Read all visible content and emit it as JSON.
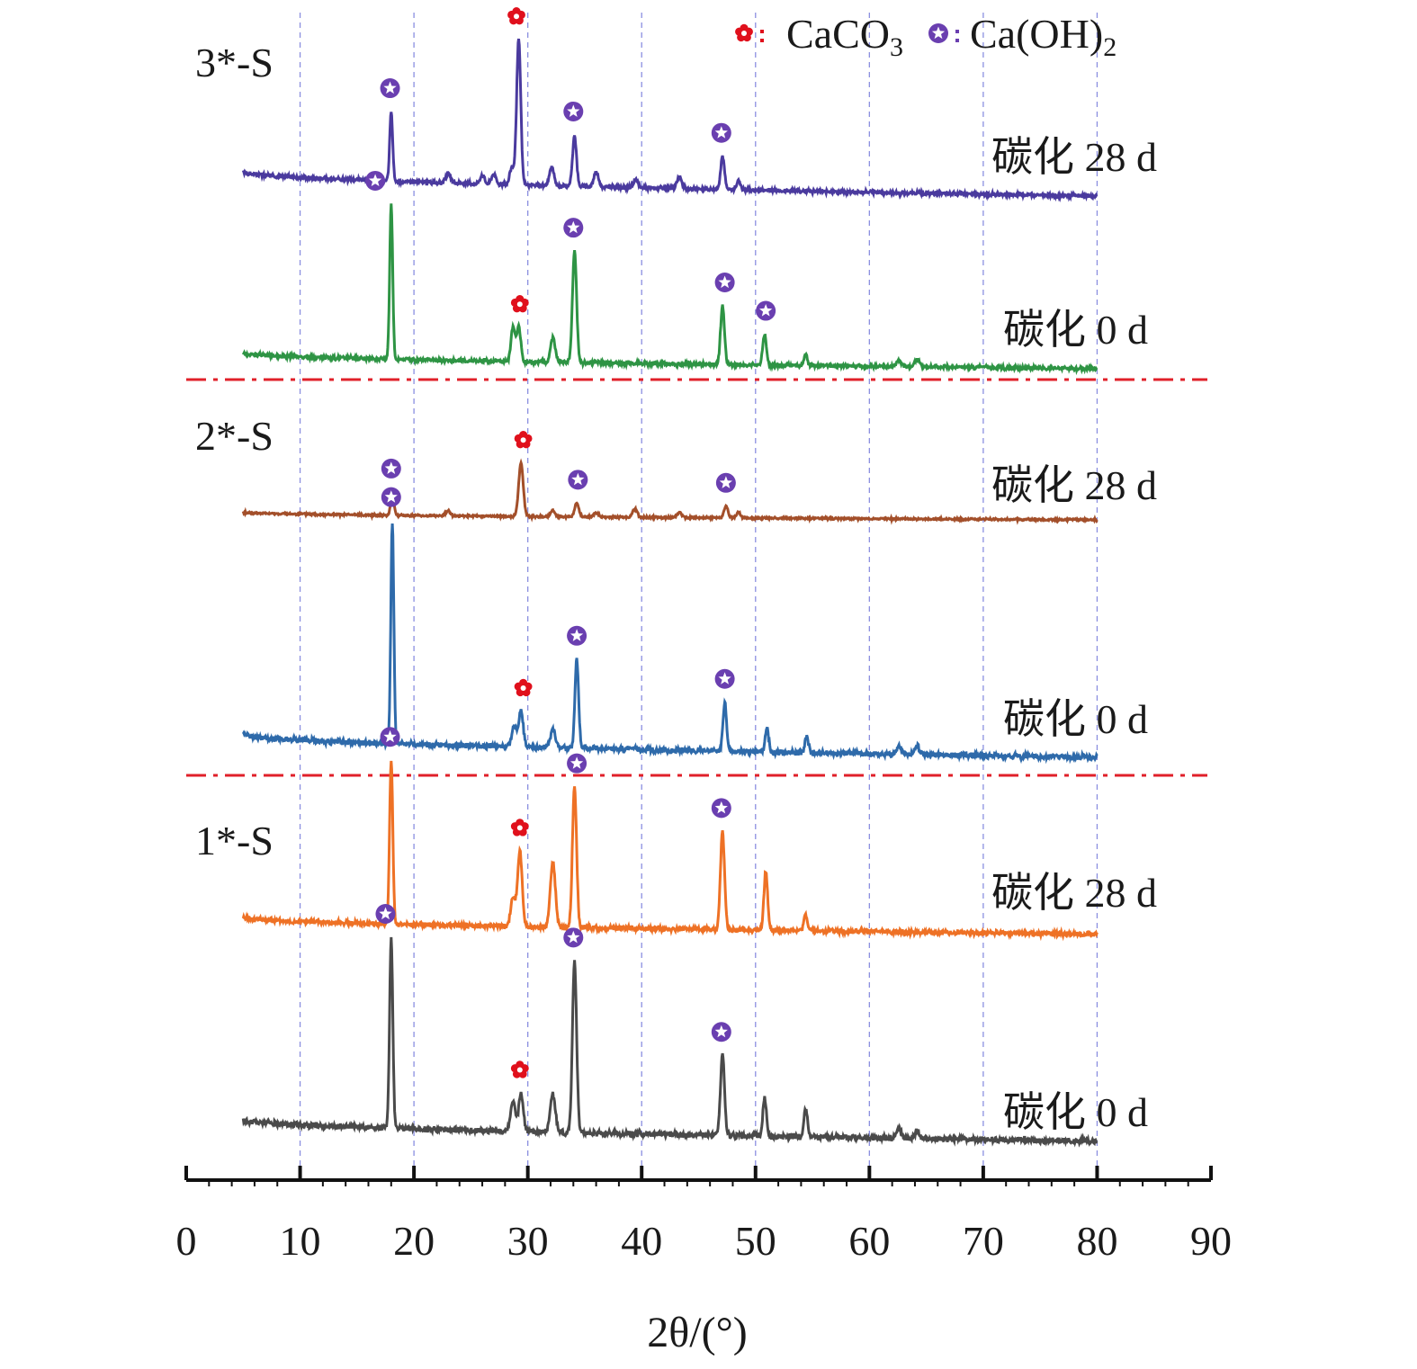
{
  "chart_data": {
    "type": "line",
    "chart_subtype": "stacked XRD patterns",
    "xlabel": "2θ/(°)",
    "ylabel": "",
    "xlim": [
      0,
      90
    ],
    "x_ticks": [
      "0",
      "10",
      "20",
      "30",
      "40",
      "50",
      "60",
      "70",
      "80",
      "90"
    ],
    "x_gridlines": [
      10,
      20,
      30,
      40,
      50,
      60,
      70,
      80
    ],
    "grid": "vertical dashed",
    "legend": {
      "placement": "top-right",
      "entries": [
        {
          "marker": "flower",
          "label": "CaCO",
          "sub": "3",
          "suffix": "",
          "color": "#e0101c"
        },
        {
          "marker": "star-circle",
          "label": "Ca(OH)",
          "sub": "2",
          "suffix": "",
          "color": "#6a3fb0"
        }
      ]
    },
    "groups": [
      {
        "sample": "1*-S",
        "series_names": [
          "碳化 0 d",
          "碳化 28 d"
        ]
      },
      {
        "sample": "2*-S",
        "series_names": [
          "碳化 0 d",
          "碳化 28 d"
        ]
      },
      {
        "sample": "3*-S",
        "series_names": [
          "碳化 0 d",
          "碳化 28 d"
        ]
      }
    ],
    "series": [
      {
        "name": "碳化 0 d",
        "sample": "1*-S",
        "color": "#4a4a4a",
        "baseline_start": 0.14,
        "baseline_end": 0.03,
        "noise": 0.012,
        "seed": 11,
        "peaks": [
          [
            18.0,
            1.0,
            0.14
          ],
          [
            28.7,
            0.16,
            0.2
          ],
          [
            29.4,
            0.2,
            0.2
          ],
          [
            32.2,
            0.2,
            0.22
          ],
          [
            34.1,
            0.9,
            0.18
          ],
          [
            47.1,
            0.42,
            0.18
          ],
          [
            50.8,
            0.2,
            0.16
          ],
          [
            54.4,
            0.14,
            0.16
          ],
          [
            62.6,
            0.05,
            0.2
          ],
          [
            64.2,
            0.04,
            0.2
          ]
        ],
        "markers": [
          [
            17.5,
            "Ca(OH)2"
          ],
          [
            34.0,
            "Ca(OH)2"
          ],
          [
            29.3,
            "CaCO3"
          ],
          [
            47.0,
            "Ca(OH)2"
          ]
        ]
      },
      {
        "name": "碳化 28 d",
        "sample": "1*-S",
        "color": "#ee7125",
        "baseline_start": 0.13,
        "baseline_end": 0.03,
        "noise": 0.012,
        "seed": 23,
        "peaks": [
          [
            18.0,
            1.0,
            0.14
          ],
          [
            28.7,
            0.18,
            0.2
          ],
          [
            29.3,
            0.46,
            0.2
          ],
          [
            32.2,
            0.4,
            0.22
          ],
          [
            34.1,
            0.86,
            0.18
          ],
          [
            47.1,
            0.6,
            0.18
          ],
          [
            50.9,
            0.36,
            0.16
          ],
          [
            54.4,
            0.1,
            0.16
          ]
        ],
        "markers": [
          [
            17.9,
            "Ca(OH)2"
          ],
          [
            29.3,
            "CaCO3"
          ],
          [
            34.3,
            "Ca(OH)2"
          ],
          [
            47.0,
            "Ca(OH)2"
          ]
        ]
      },
      {
        "name": "碳化 0 d",
        "sample": "2*-S",
        "color": "#2e6aaa",
        "baseline_start": 0.1,
        "baseline_end": 0.0,
        "noise": 0.01,
        "seed": 37,
        "peaks": [
          [
            18.1,
            1.0,
            0.13
          ],
          [
            28.8,
            0.1,
            0.2
          ],
          [
            29.4,
            0.16,
            0.2
          ],
          [
            32.2,
            0.08,
            0.22
          ],
          [
            34.3,
            0.4,
            0.16
          ],
          [
            47.3,
            0.22,
            0.16
          ],
          [
            51.0,
            0.1,
            0.16
          ],
          [
            54.5,
            0.07,
            0.16
          ],
          [
            62.6,
            0.04,
            0.2
          ],
          [
            64.2,
            0.04,
            0.2
          ]
        ],
        "markers": [
          [
            18.0,
            "Ca(OH)2"
          ],
          [
            34.3,
            "Ca(OH)2"
          ],
          [
            29.6,
            "CaCO3"
          ],
          [
            47.3,
            "Ca(OH)2"
          ]
        ]
      },
      {
        "name": "碳化 28 d",
        "sample": "2*-S",
        "color": "#a34f2a",
        "baseline_start": 0.07,
        "baseline_end": 0.0,
        "noise": 0.008,
        "seed": 41,
        "peaks": [
          [
            18.1,
            0.22,
            0.14
          ],
          [
            23.0,
            0.05,
            0.2
          ],
          [
            29.4,
            0.5,
            0.2
          ],
          [
            32.2,
            0.06,
            0.2
          ],
          [
            34.3,
            0.13,
            0.18
          ],
          [
            36.0,
            0.04,
            0.2
          ],
          [
            39.4,
            0.08,
            0.2
          ],
          [
            43.3,
            0.05,
            0.2
          ],
          [
            47.4,
            0.11,
            0.18
          ],
          [
            48.5,
            0.05,
            0.18
          ]
        ],
        "markers": [
          [
            18.0,
            "Ca(OH)2"
          ],
          [
            29.6,
            "CaCO3"
          ],
          [
            34.4,
            "Ca(OH)2"
          ],
          [
            47.4,
            "Ca(OH)2"
          ]
        ]
      },
      {
        "name": "碳化 0 d",
        "sample": "3*-S",
        "color": "#2e9444",
        "baseline_start": 0.1,
        "baseline_end": 0.0,
        "noise": 0.01,
        "seed": 53,
        "peaks": [
          [
            18.0,
            1.0,
            0.13
          ],
          [
            28.7,
            0.22,
            0.18
          ],
          [
            29.2,
            0.22,
            0.18
          ],
          [
            32.2,
            0.16,
            0.2
          ],
          [
            34.1,
            0.72,
            0.18
          ],
          [
            47.1,
            0.38,
            0.17
          ],
          [
            50.8,
            0.2,
            0.16
          ],
          [
            54.4,
            0.07,
            0.16
          ],
          [
            62.6,
            0.04,
            0.2
          ],
          [
            64.2,
            0.05,
            0.2
          ]
        ],
        "markers": [
          [
            16.6,
            "Ca(OH)2"
          ],
          [
            34.0,
            "Ca(OH)2"
          ],
          [
            29.3,
            "CaCO3"
          ],
          [
            47.3,
            "Ca(OH)2"
          ],
          [
            50.9,
            "Ca(OH)2"
          ]
        ]
      },
      {
        "name": "碳化 28 d",
        "sample": "3*-S",
        "color": "#4a3a9e",
        "baseline_start": 0.16,
        "baseline_end": 0.0,
        "noise": 0.01,
        "seed": 67,
        "peaks": [
          [
            18.0,
            0.46,
            0.13
          ],
          [
            23.0,
            0.06,
            0.2
          ],
          [
            26.0,
            0.06,
            0.2
          ],
          [
            27.0,
            0.07,
            0.2
          ],
          [
            28.6,
            0.12,
            0.18
          ],
          [
            29.2,
            0.96,
            0.18
          ],
          [
            32.1,
            0.12,
            0.2
          ],
          [
            34.1,
            0.34,
            0.17
          ],
          [
            36.0,
            0.1,
            0.2
          ],
          [
            39.5,
            0.05,
            0.2
          ],
          [
            43.3,
            0.08,
            0.2
          ],
          [
            47.1,
            0.22,
            0.17
          ],
          [
            48.5,
            0.06,
            0.18
          ]
        ],
        "markers": [
          [
            17.9,
            "Ca(OH)2"
          ],
          [
            29.0,
            "CaCO3"
          ],
          [
            34.0,
            "Ca(OH)2"
          ],
          [
            47.0,
            "Ca(OH)2"
          ]
        ]
      }
    ],
    "separators": "red dash-dot lines between sample groups"
  }
}
